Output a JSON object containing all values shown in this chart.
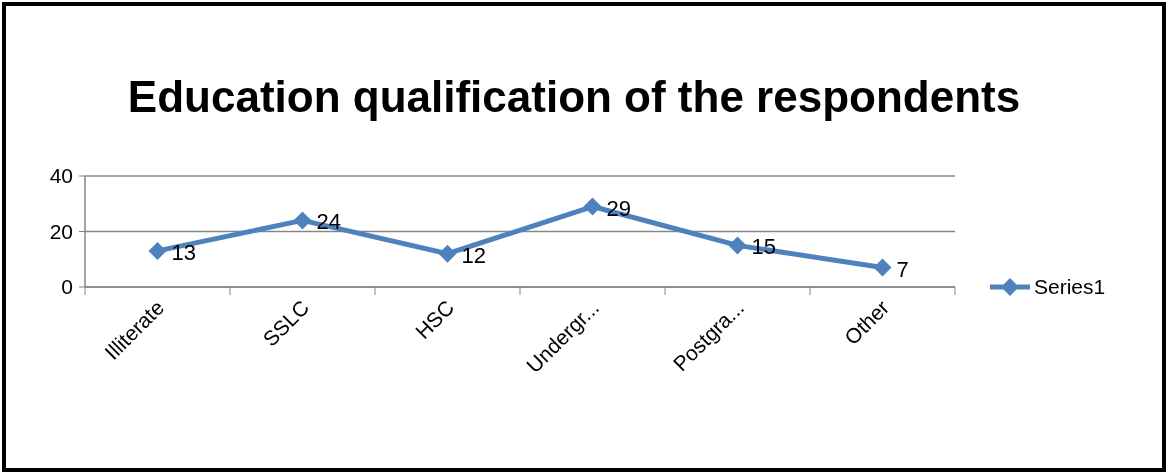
{
  "chart_data": {
    "type": "line",
    "title": "Education qualification of the respondents",
    "categories": [
      "Illiterate",
      "SSLC",
      "HSC",
      "Undergr...",
      "Postgra...",
      "Other"
    ],
    "series": [
      {
        "name": "Series1",
        "color": "#4f81bd",
        "values": [
          13,
          24,
          12,
          29,
          15,
          7
        ]
      }
    ],
    "ylim": [
      0,
      40
    ],
    "yticks": [
      0,
      20,
      40
    ],
    "grid": "y",
    "legend": "right",
    "marker": "diamond",
    "data_labels": true
  }
}
